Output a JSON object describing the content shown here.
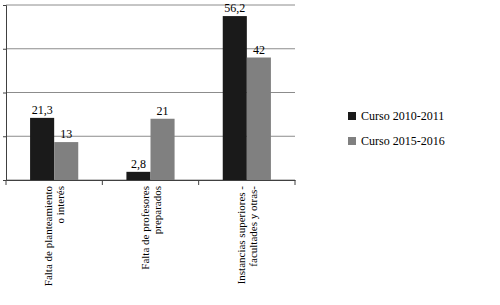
{
  "chart_data": {
    "type": "bar",
    "categories": [
      "Falta de planteamiento o interés",
      "Falta de profesores preparados",
      "Instancias superiores - facultades y otras-"
    ],
    "series": [
      {
        "name": "Curso 2010-2011",
        "color": "#1a1a1a",
        "values": [
          21.3,
          2.8,
          56.2
        ],
        "value_labels": [
          "21,3",
          "2,8",
          "56,2"
        ]
      },
      {
        "name": "Curso 2015-2016",
        "color": "#808080",
        "values": [
          13,
          21,
          42
        ]
      }
    ],
    "ylim": [
      0,
      60
    ],
    "yticks": [
      0,
      15,
      30,
      45,
      60
    ],
    "grid": true,
    "tick_labels": false,
    "data_labels": true,
    "legend": "right"
  }
}
